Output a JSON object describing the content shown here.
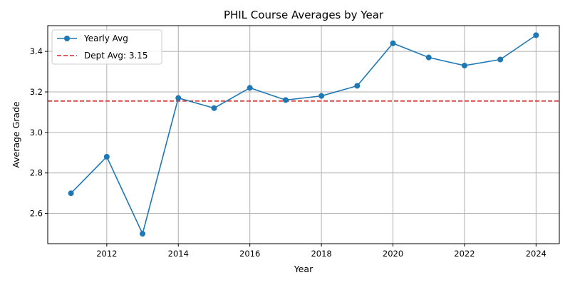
{
  "chart_data": {
    "type": "line",
    "title": "PHIL Course Averages by Year",
    "xlabel": "Year",
    "ylabel": "Average Grade",
    "xlim": [
      2010.35,
      2024.65
    ],
    "ylim": [
      2.451,
      3.527
    ],
    "xticks": [
      2012,
      2014,
      2016,
      2018,
      2020,
      2022,
      2024
    ],
    "yticks": [
      2.6,
      2.8,
      3.0,
      3.2,
      3.4
    ],
    "ytick_labels": [
      "2.6",
      "2.8",
      "3.0",
      "3.2",
      "3.4"
    ],
    "grid": true,
    "legend_position": "top-left",
    "series": [
      {
        "name": "Yearly Avg",
        "color": "#1f77b4",
        "marker": "circle",
        "x": [
          2011,
          2012,
          2013,
          2014,
          2015,
          2016,
          2017,
          2018,
          2019,
          2020,
          2021,
          2022,
          2023,
          2024
        ],
        "y": [
          2.7,
          2.88,
          2.5,
          3.17,
          3.12,
          3.22,
          3.16,
          3.18,
          3.23,
          3.44,
          3.37,
          3.33,
          3.36,
          3.48
        ]
      }
    ],
    "reference_lines": [
      {
        "name": "Dept Avg: 3.15",
        "value": 3.155,
        "color": "#d62728",
        "style": "dashed"
      }
    ]
  }
}
